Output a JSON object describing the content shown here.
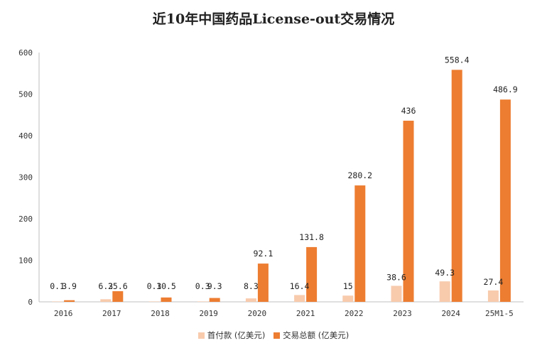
{
  "chart_data": {
    "type": "bar",
    "title": "近10年中国药品License-out交易情况",
    "categories": [
      "2016",
      "2017",
      "2018",
      "2019",
      "2020",
      "2021",
      "2022",
      "2023",
      "2024",
      "25M1-5"
    ],
    "series": [
      {
        "name": "首付款 (亿美元)",
        "color": "#F8CBAD",
        "values": [
          0.1,
          6.3,
          0.3,
          0.3,
          8.3,
          16.4,
          15,
          38.6,
          49.3,
          27.4
        ],
        "labels": [
          "0.1",
          "6.3",
          "0.3",
          "0.3",
          "8.3",
          "16.4",
          "15",
          "38.6",
          "49.3",
          "27.4"
        ]
      },
      {
        "name": "交易总额 (亿美元)",
        "color": "#ED7D31",
        "values": [
          3.9,
          25.6,
          10.5,
          9.3,
          92.1,
          131.8,
          280.2,
          436,
          558.4,
          486.9
        ],
        "labels": [
          "3.9",
          "25.6",
          "10.5",
          "9.3",
          "92.1",
          "131.8",
          "280.2",
          "436",
          "558.4",
          "486.9"
        ]
      }
    ],
    "ylim": [
      0,
      600
    ],
    "yticks": [
      "0",
      "100",
      "200",
      "300",
      "400",
      "500",
      "600"
    ],
    "grid": false,
    "legend_position": "bottom"
  }
}
